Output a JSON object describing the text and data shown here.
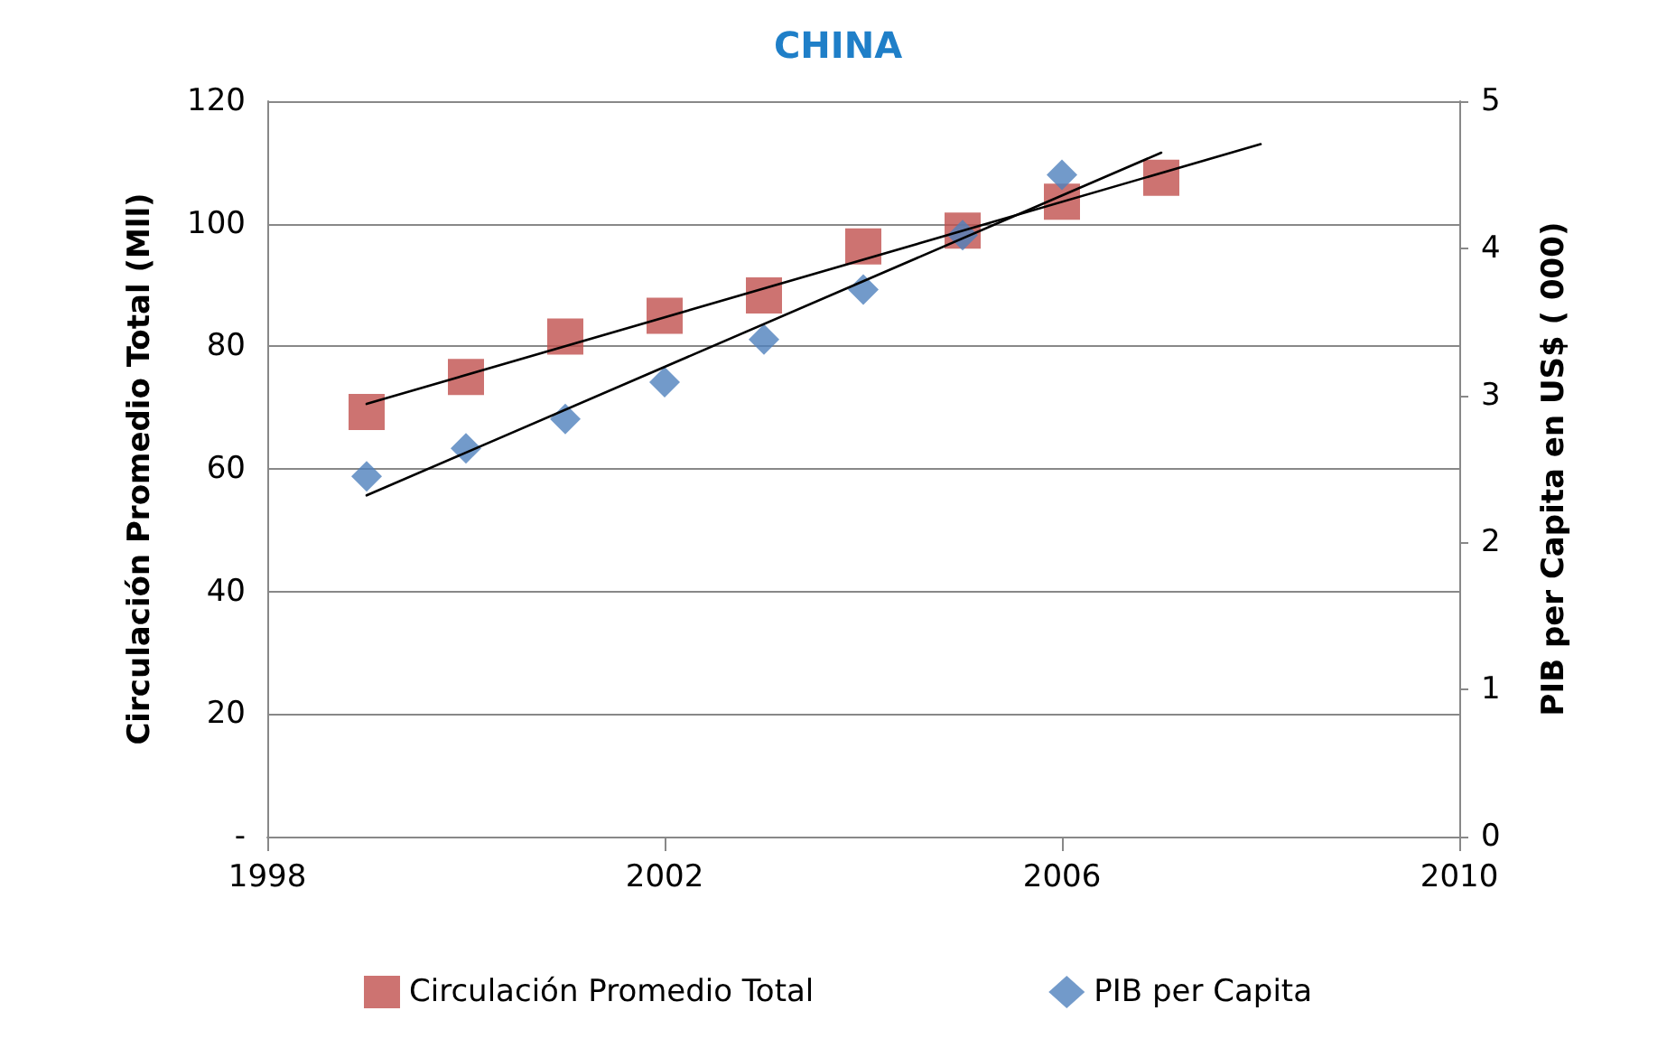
{
  "chart_data": {
    "type": "scatter",
    "title": "CHINA",
    "ylabel": "Circulación Promedio Total (Mll)",
    "y2label": "PIB per Capita en US$ ( 000)",
    "x": [
      1999,
      2000,
      2001,
      2002,
      2003,
      2004,
      2005,
      2006,
      2007
    ],
    "xlim": [
      1998,
      2010
    ],
    "xticks": [
      1998,
      2002,
      2006,
      2010
    ],
    "ylim": [
      0,
      120
    ],
    "yticks": [
      {
        "value": 0,
        "label": "-"
      },
      20,
      40,
      60,
      80,
      100,
      120
    ],
    "y2lim": [
      0,
      5
    ],
    "y2ticks": [
      0,
      1,
      2,
      3,
      4,
      5
    ],
    "grid": "y",
    "legend": "bottom",
    "series": [
      {
        "name": "Circulación Promedio Total",
        "color": "#c0504d",
        "marker": "square",
        "values": [
          69.3,
          75.0,
          81.6,
          85.0,
          88.3,
          96.3,
          98.9,
          103.6,
          107.5
        ]
      },
      {
        "name": "PIB per Capita",
        "color": "#4f81bd",
        "marker": "diamond",
        "axis": "y2",
        "x": [
          1999,
          2000,
          2001,
          2002,
          2003,
          2004,
          2005,
          2006
        ],
        "values": [
          2.45,
          2.64,
          2.84,
          3.09,
          3.38,
          3.72,
          4.09,
          4.5
        ]
      },
      {
        "type": "line",
        "color": "#000000",
        "marker": "none",
        "x": [
          1999,
          2008
        ],
        "values": [
          70.6,
          113.0
        ]
      },
      {
        "type": "line",
        "color": "#000000",
        "marker": "none",
        "axis": "y2",
        "x": [
          1999,
          2007
        ],
        "values": [
          2.32,
          4.65
        ]
      }
    ]
  }
}
